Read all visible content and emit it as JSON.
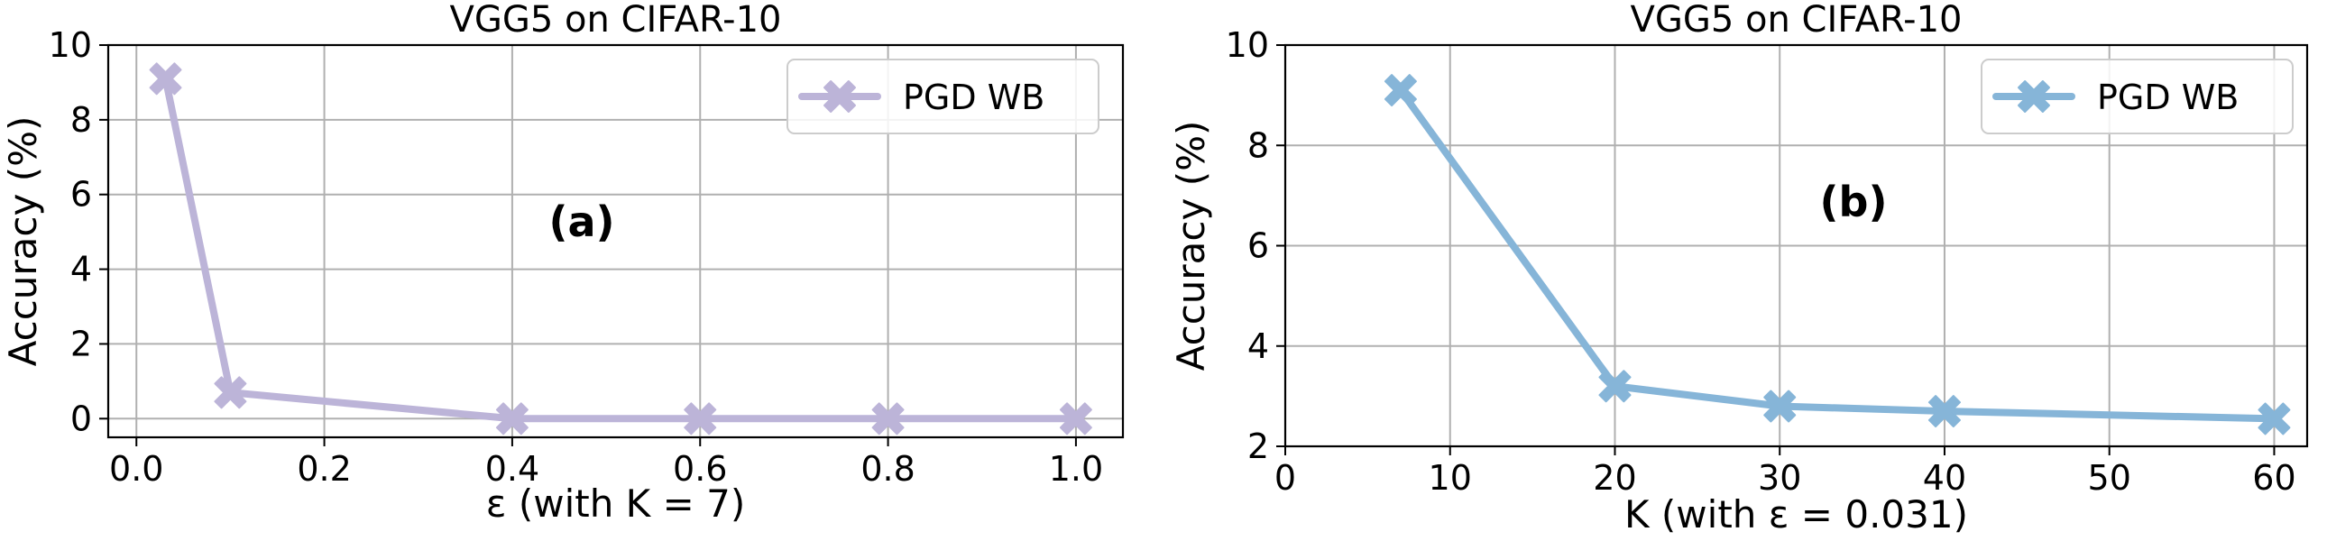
{
  "chart_data": [
    {
      "type": "line",
      "title": "VGG5 on CIFAR-10",
      "xlabel": "ε (with K = 7)",
      "ylabel": "Accuracy (%)",
      "panel_label": "(a)",
      "xlim": [
        -0.03,
        1.05
      ],
      "ylim": [
        -0.5,
        10
      ],
      "xticks": [
        0.0,
        0.2,
        0.4,
        0.6,
        0.8,
        1.0
      ],
      "xtick_labels": [
        "0.0",
        "0.2",
        "0.4",
        "0.6",
        "0.8",
        "1.0"
      ],
      "yticks": [
        0,
        2,
        4,
        6,
        8,
        10
      ],
      "ytick_labels": [
        "0",
        "2",
        "4",
        "6",
        "8",
        "10"
      ],
      "grid": true,
      "legend_position": "top-right",
      "series": [
        {
          "name": "PGD WB",
          "color": "#bcb4d8",
          "marker": "x-cross",
          "x": [
            0.031,
            0.1,
            0.4,
            0.6,
            0.8,
            1.0
          ],
          "y": [
            9.1,
            0.7,
            0.0,
            0.0,
            0.0,
            0.0
          ]
        }
      ]
    },
    {
      "type": "line",
      "title": "VGG5 on CIFAR-10",
      "xlabel": "K (with ε = 0.031)",
      "ylabel": "Accuracy (%)",
      "panel_label": "(b)",
      "xlim": [
        0,
        62
      ],
      "ylim": [
        2,
        10
      ],
      "xticks": [
        0,
        10,
        20,
        30,
        40,
        50,
        60
      ],
      "xtick_labels": [
        "0",
        "10",
        "20",
        "30",
        "40",
        "50",
        "60"
      ],
      "yticks": [
        2,
        4,
        6,
        8,
        10
      ],
      "ytick_labels": [
        "2",
        "4",
        "6",
        "8",
        "10"
      ],
      "grid": true,
      "legend_position": "top-right",
      "series": [
        {
          "name": "PGD WB",
          "color": "#86b5d8",
          "marker": "x-cross",
          "x": [
            7,
            20,
            30,
            40,
            60
          ],
          "y": [
            9.1,
            3.2,
            2.8,
            2.7,
            2.55
          ]
        }
      ]
    }
  ]
}
